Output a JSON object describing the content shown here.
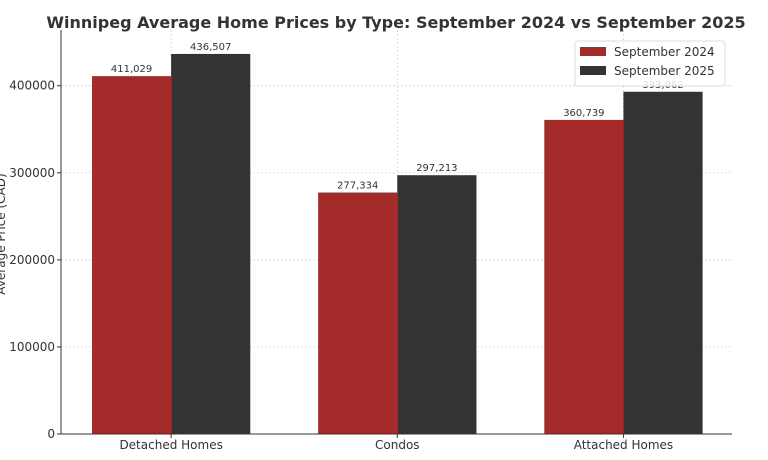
{
  "chart_data": {
    "type": "bar",
    "title": "Winnipeg Average Home Prices by Type: September 2024 vs September 2025",
    "xlabel": "",
    "ylabel": "Average Price (CAD)",
    "categories": [
      "Detached Homes",
      "Condos",
      "Attached Homes"
    ],
    "series": [
      {
        "name": "September 2024",
        "color": "#a52a2a",
        "values": [
          411029,
          277334,
          360739
        ],
        "labels": [
          "411,029",
          "277,334",
          "360,739"
        ]
      },
      {
        "name": "September 2025",
        "color": "#333333",
        "values": [
          436507,
          297213,
          393062
        ],
        "labels": [
          "436,507",
          "297,213",
          "393,062"
        ]
      }
    ],
    "ylim": [
      0,
      464000
    ],
    "yticks": [
      0,
      100000,
      200000,
      300000,
      400000
    ],
    "ytick_labels": [
      "0",
      "100000",
      "200000",
      "300000",
      "400000"
    ],
    "grid": true,
    "legend": "top-right"
  }
}
